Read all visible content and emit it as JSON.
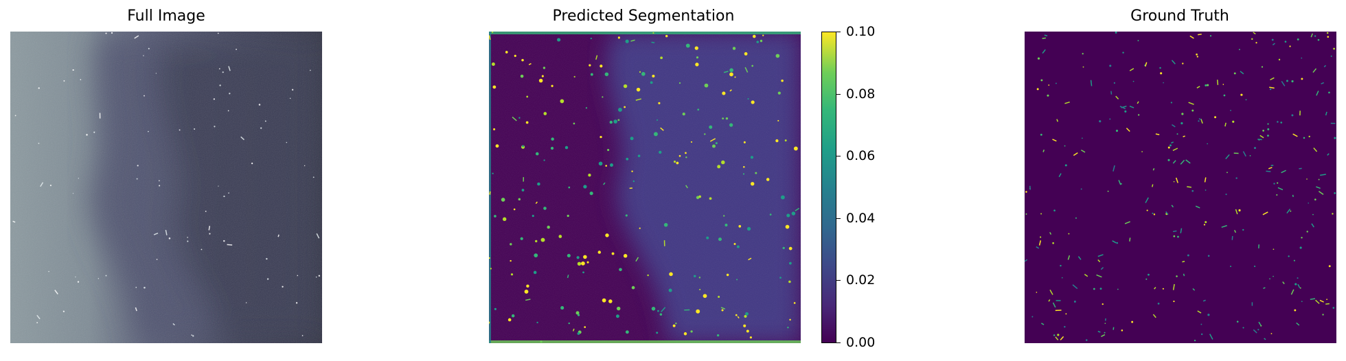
{
  "titles": {
    "full": "Full Image",
    "pred": "Predicted Segmentation",
    "gt": "Ground Truth"
  },
  "colorbar": {
    "ticks": [
      "0.00",
      "0.02",
      "0.04",
      "0.06",
      "0.08",
      "0.10"
    ],
    "vmin": 0.0,
    "vmax": 0.1,
    "colormap": "viridis"
  },
  "colors": {
    "viridis_low": "#440154",
    "viridis_mid": "#3b528b",
    "viridis_high": "#fde725",
    "gray_light": "#8c9aa0",
    "gray_dark": "#2f3140"
  }
}
